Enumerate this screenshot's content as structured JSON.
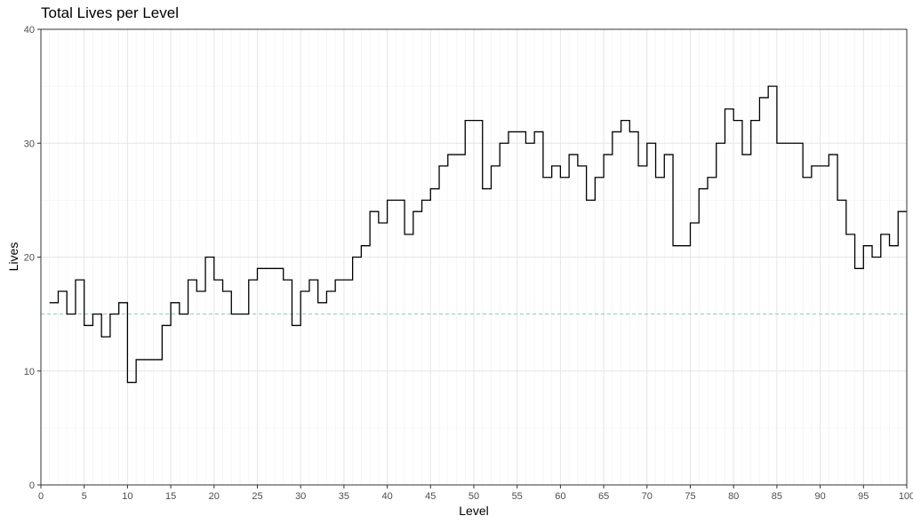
{
  "chart_data": {
    "type": "line",
    "step": true,
    "title": "Total Lives per Level",
    "xlabel": "Level",
    "ylabel": "Lives",
    "xlim": [
      0,
      100
    ],
    "ylim": [
      0,
      40
    ],
    "xticks": [
      0,
      5,
      10,
      15,
      20,
      25,
      30,
      35,
      40,
      45,
      50,
      55,
      60,
      65,
      70,
      75,
      80,
      85,
      90,
      95,
      100
    ],
    "yticks": [
      0,
      10,
      20,
      30,
      40
    ],
    "grid": true,
    "reference_line": {
      "y": 15,
      "style": "dashed",
      "color": "#8fc7c2"
    },
    "series": [
      {
        "color": "#000000",
        "x": [
          1,
          2,
          3,
          4,
          5,
          6,
          7,
          8,
          9,
          10,
          11,
          12,
          13,
          14,
          15,
          16,
          17,
          18,
          19,
          20,
          21,
          22,
          23,
          24,
          25,
          26,
          27,
          28,
          29,
          30,
          31,
          32,
          33,
          34,
          35,
          36,
          37,
          38,
          39,
          40,
          41,
          42,
          43,
          44,
          45,
          46,
          47,
          48,
          49,
          50,
          51,
          52,
          53,
          54,
          55,
          56,
          57,
          58,
          59,
          60,
          61,
          62,
          63,
          64,
          65,
          66,
          67,
          68,
          69,
          70,
          71,
          72,
          73,
          74,
          75,
          76,
          77,
          78,
          79,
          80,
          81,
          82,
          83,
          84,
          85,
          86,
          87,
          88,
          89,
          90,
          91,
          92,
          93,
          94,
          95,
          96,
          97,
          98,
          99,
          100
        ],
        "y": [
          16,
          17,
          15,
          18,
          14,
          15,
          13,
          15,
          16,
          9,
          11,
          11,
          11,
          14,
          16,
          15,
          18,
          17,
          20,
          18,
          17,
          15,
          15,
          18,
          19,
          19,
          19,
          18,
          14,
          17,
          18,
          16,
          17,
          18,
          18,
          20,
          21,
          24,
          23,
          25,
          25,
          22,
          24,
          25,
          26,
          28,
          29,
          29,
          32,
          32,
          26,
          28,
          30,
          31,
          31,
          30,
          31,
          27,
          28,
          27,
          29,
          28,
          25,
          27,
          29,
          31,
          32,
          31,
          28,
          30,
          27,
          29,
          21,
          21,
          23,
          26,
          27,
          30,
          33,
          32,
          29,
          32,
          34,
          35,
          30,
          30,
          30,
          27,
          28,
          28,
          29,
          25,
          22,
          19,
          21,
          20,
          22,
          21,
          24,
          24
        ]
      }
    ]
  }
}
